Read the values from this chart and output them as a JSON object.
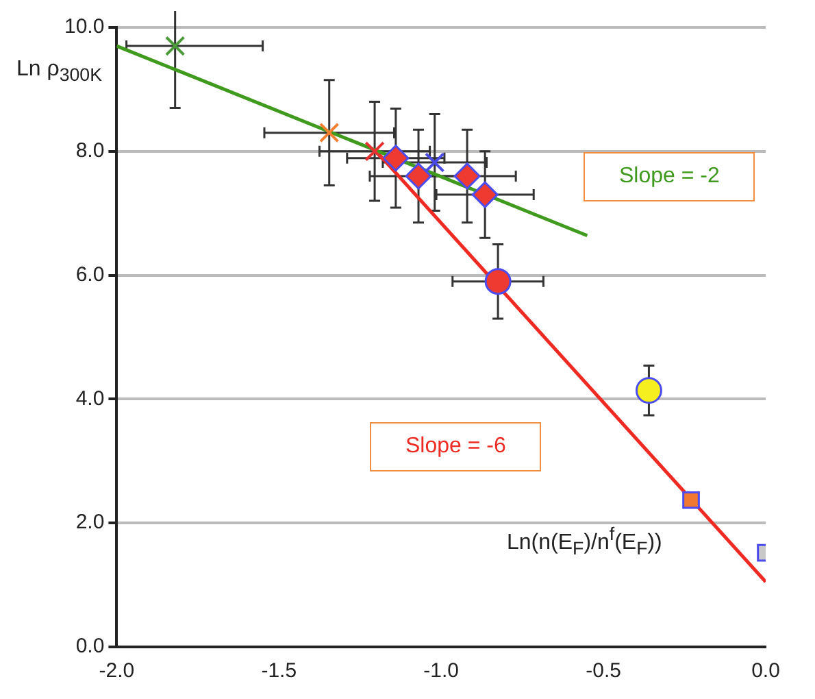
{
  "chart_data": {
    "type": "scatter",
    "xlabel": "Ln(n(E$_{F}$)/n$^{f}$(E$_{F}$))",
    "ylabel": "Ln ρ$_{300K}$",
    "xlim": [
      -2,
      0
    ],
    "ylim": [
      0,
      10
    ],
    "xticks": [
      {
        "value": -2,
        "label": "-2.0"
      },
      {
        "value": -1.5,
        "label": "-1.5"
      },
      {
        "value": -1,
        "label": "-1.0"
      },
      {
        "value": -0.5,
        "label": "-0.5"
      },
      {
        "value": 0,
        "label": "0.0"
      }
    ],
    "yticks": [
      {
        "value": 0,
        "label": "0.0"
      },
      {
        "value": 2,
        "label": "2.0"
      },
      {
        "value": 4,
        "label": "4.0"
      },
      {
        "value": 6,
        "label": "6.0"
      },
      {
        "value": 8,
        "label": "8.0"
      },
      {
        "value": 10,
        "label": "10.0"
      }
    ],
    "grid": "y",
    "legend": false,
    "annotations": [
      "Slope = -2",
      "Slope = -6"
    ],
    "series": [
      {
        "type": "line",
        "color": "#3f9a1e",
        "x": [
          -2,
          -0.55
        ],
        "values": [
          9.7,
          6.64
        ],
        "marker": "none"
      },
      {
        "type": "line",
        "color": "#ee2a22",
        "x": [
          -1.2,
          0
        ],
        "values": [
          8.0,
          1.05
        ],
        "marker": "none"
      },
      {
        "color": "#4a9a3a",
        "marker": "cross",
        "x": [
          -1.82
        ],
        "values": [
          9.7
        ],
        "errors": [
          1.0
        ],
        "xerrors": [
          [
            -1.97,
            -1.55
          ]
        ]
      },
      {
        "color": "#f08030",
        "marker": "cross",
        "x": [
          -1.345
        ],
        "values": [
          8.3
        ],
        "errors": [
          0.85
        ],
        "xerrors": [
          0.2
        ]
      },
      {
        "color": "#e83030",
        "marker": "cross",
        "x": [
          -1.205
        ],
        "values": [
          8.0
        ],
        "errors": [
          0.8
        ],
        "xerrors": [
          0.17
        ]
      },
      {
        "color": "#4a4ae8",
        "marker": "cross",
        "x": [
          -1.02
        ],
        "values": [
          7.82
        ],
        "errors": [
          0.78
        ],
        "xerrors": [
          0.16
        ]
      },
      {
        "color": "#ee3a30",
        "marker": "diamond",
        "x": [
          -1.14,
          -1.07,
          -0.92,
          -0.865
        ],
        "values": [
          7.89,
          7.6,
          7.6,
          7.3
        ],
        "errors": [
          0.8,
          0.75,
          0.75,
          0.7
        ],
        "xerrors": [
          0.15,
          0.15,
          0.15,
          0.15
        ]
      },
      {
        "color": "#ee3a30",
        "marker": "circle",
        "x": [
          -0.825
        ],
        "values": [
          5.9
        ],
        "errors": [
          0.6
        ],
        "xerrors": [
          0.14
        ]
      },
      {
        "color": "#f5ef20",
        "marker": "circle",
        "x": [
          -0.36
        ],
        "values": [
          4.14
        ],
        "errors": [
          0.4
        ],
        "xerrors": [
          0.03
        ]
      },
      {
        "color": "#f07830",
        "marker": "square",
        "x": [
          -0.23
        ],
        "values": [
          2.37
        ]
      },
      {
        "color": "#c8c8c8",
        "marker": "square",
        "x": [
          0
        ],
        "values": [
          1.52
        ]
      }
    ]
  }
}
